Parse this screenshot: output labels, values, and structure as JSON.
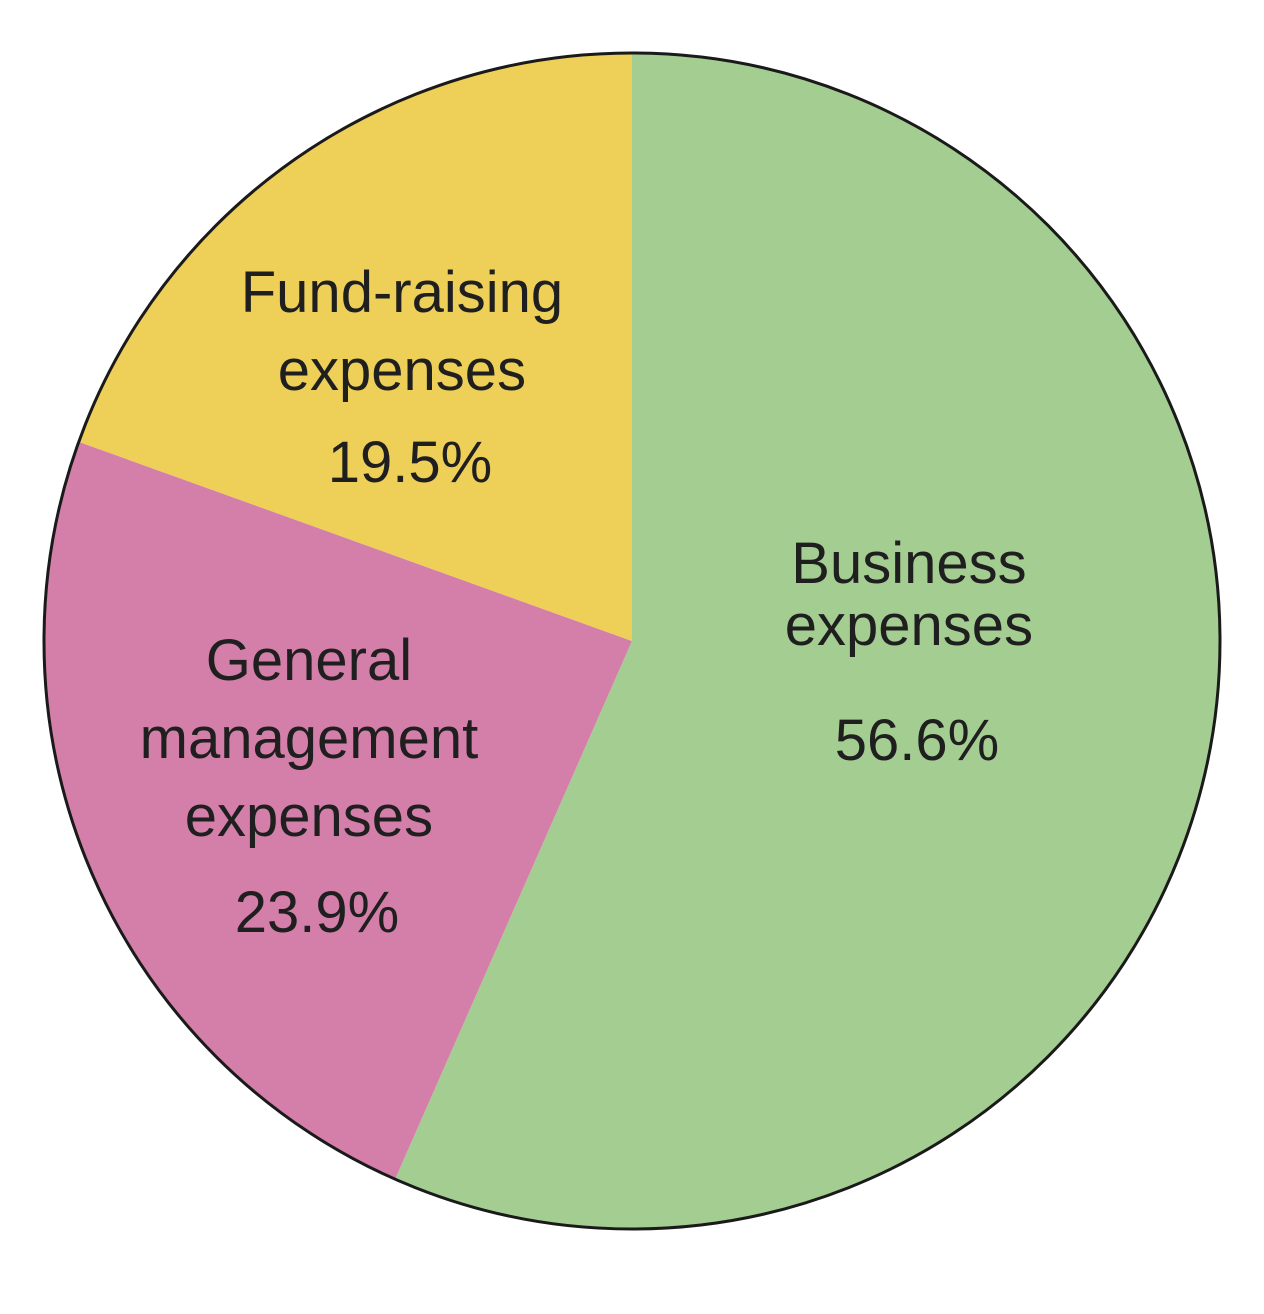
{
  "chart_data": {
    "type": "pie",
    "title": "",
    "slices": [
      {
        "label_lines": [
          "Business",
          "expenses"
        ],
        "value": 56.6,
        "value_text": "56.6%",
        "color": "#a4cd92"
      },
      {
        "label_lines": [
          "General",
          "management",
          "expenses"
        ],
        "value": 23.9,
        "value_text": "23.9%",
        "color": "#d47fa9"
      },
      {
        "label_lines": [
          "Fund-raising",
          "expenses"
        ],
        "value": 19.5,
        "value_text": "19.5%",
        "color": "#eecf58"
      }
    ],
    "start_angle": "12 o'clock",
    "direction": "clockwise",
    "legend": "none",
    "labels": "inside slices"
  }
}
